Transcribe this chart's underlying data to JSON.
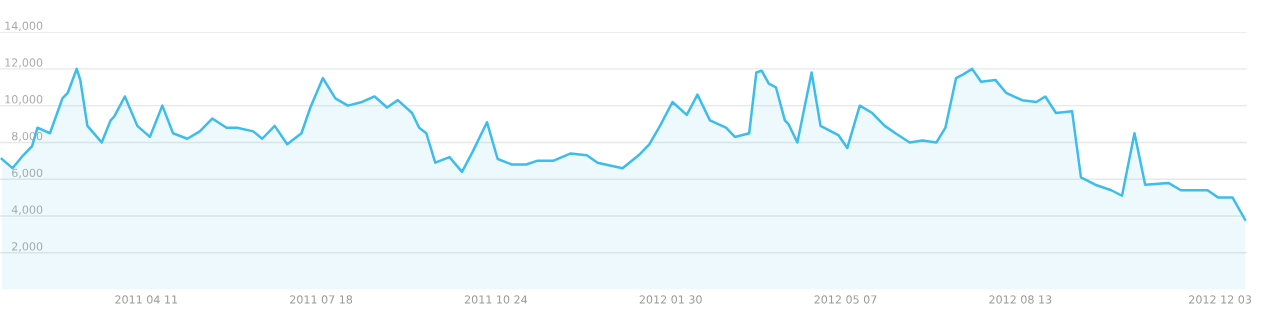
{
  "chart_data": {
    "type": "area",
    "xlim": [
      "2011-01-19",
      "2012-12-18"
    ],
    "ylim": [
      0,
      14000
    ],
    "xticks": [
      {
        "value": "2011-04-11",
        "label": "2011 04 11"
      },
      {
        "value": "2011-07-18",
        "label": "2011 07 18"
      },
      {
        "value": "2011-10-24",
        "label": "2011 10 24"
      },
      {
        "value": "2012-01-30",
        "label": "2012 01 30"
      },
      {
        "value": "2012-05-07",
        "label": "2012 05 07"
      },
      {
        "value": "2012-08-13",
        "label": "2012 08 13"
      },
      {
        "value": "2012-12-03",
        "label": "2012 12 03"
      }
    ],
    "yticks": [
      {
        "value": 2000,
        "label": "2,000"
      },
      {
        "value": 4000,
        "label": "4,000"
      },
      {
        "value": 6000,
        "label": "6,000"
      },
      {
        "value": 8000,
        "label": "8,000"
      },
      {
        "value": 10000,
        "label": "10,000"
      },
      {
        "value": 12000,
        "label": "12,000"
      },
      {
        "value": 14000,
        "label": "14,000"
      }
    ],
    "grid": "y",
    "marker": "none",
    "line_style": "solid",
    "series": [
      {
        "color": "#3dbdeb",
        "x": [
          "2011-01-20",
          "2011-01-26",
          "2011-02-01",
          "2011-02-06",
          "2011-02-09",
          "2011-02-16",
          "2011-02-23",
          "2011-02-26",
          "2011-03-03",
          "2011-03-05",
          "2011-03-09",
          "2011-03-17",
          "2011-03-22",
          "2011-03-24",
          "2011-03-30",
          "2011-04-06",
          "2011-04-13",
          "2011-04-20",
          "2011-04-26",
          "2011-05-04",
          "2011-05-11",
          "2011-05-18",
          "2011-05-26",
          "2011-06-01",
          "2011-06-10",
          "2011-06-15",
          "2011-06-22",
          "2011-06-29",
          "2011-07-07",
          "2011-07-12",
          "2011-07-19",
          "2011-07-26",
          "2011-08-02",
          "2011-08-10",
          "2011-08-17",
          "2011-08-24",
          "2011-08-30",
          "2011-09-07",
          "2011-09-11",
          "2011-09-15",
          "2011-09-20",
          "2011-09-28",
          "2011-10-05",
          "2011-10-11",
          "2011-10-19",
          "2011-10-25",
          "2011-11-02",
          "2011-11-10",
          "2011-11-16",
          "2011-11-25",
          "2011-12-05",
          "2011-12-14",
          "2011-12-20",
          "2012-01-03",
          "2012-01-12",
          "2012-01-18",
          "2012-01-24",
          "2012-01-31",
          "2012-02-08",
          "2012-02-14",
          "2012-02-21",
          "2012-03-01",
          "2012-03-06",
          "2012-03-14",
          "2012-03-18",
          "2012-03-21",
          "2012-03-25",
          "2012-03-29",
          "2012-04-03",
          "2012-04-05",
          "2012-04-10",
          "2012-04-18",
          "2012-04-23",
          "2012-05-03",
          "2012-05-08",
          "2012-05-15",
          "2012-05-22",
          "2012-05-29",
          "2012-06-04",
          "2012-06-12",
          "2012-06-19",
          "2012-06-27",
          "2012-07-02",
          "2012-07-08",
          "2012-07-12",
          "2012-07-17",
          "2012-07-22",
          "2012-07-30",
          "2012-08-05",
          "2012-08-14",
          "2012-08-22",
          "2012-08-27",
          "2012-09-02",
          "2012-09-11",
          "2012-09-16",
          "2012-09-24",
          "2012-10-03",
          "2012-10-09",
          "2012-10-16",
          "2012-10-22",
          "2012-11-04",
          "2012-11-11",
          "2012-11-26",
          "2012-12-02",
          "2012-12-10",
          "2012-12-17"
        ],
        "values": [
          7100,
          6600,
          7300,
          7800,
          8800,
          8500,
          10400,
          10700,
          12000,
          11400,
          8900,
          8000,
          9200,
          9400,
          10500,
          8900,
          8300,
          10000,
          8500,
          8200,
          8600,
          9300,
          8800,
          8800,
          8600,
          8200,
          8900,
          7900,
          8500,
          9900,
          11500,
          10400,
          10000,
          10200,
          10500,
          9900,
          10300,
          9600,
          8800,
          8500,
          6900,
          7200,
          6400,
          7500,
          9100,
          7100,
          6800,
          6800,
          7000,
          7000,
          7400,
          7300,
          6900,
          6600,
          7300,
          7900,
          8900,
          10200,
          9500,
          10600,
          9200,
          8800,
          8300,
          8500,
          11800,
          11900,
          11200,
          11000,
          9200,
          9000,
          8000,
          11800,
          8900,
          8400,
          7700,
          10000,
          9600,
          8900,
          8500,
          8000,
          8100,
          8000,
          8800,
          11500,
          11700,
          12000,
          11300,
          11400,
          10700,
          10300,
          10200,
          10500,
          9600,
          9700,
          6100,
          5700,
          5400,
          5100,
          8500,
          5700,
          5800,
          5400,
          5400,
          5000,
          5000,
          3800
        ]
      }
    ]
  }
}
